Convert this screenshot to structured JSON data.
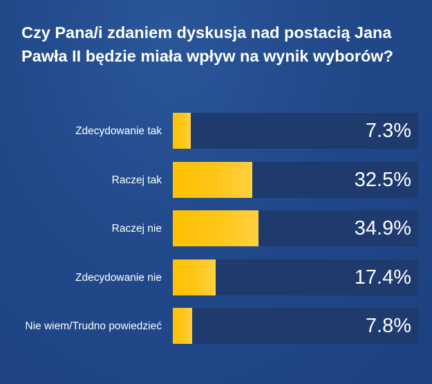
{
  "chart_data": {
    "type": "bar",
    "orientation": "horizontal",
    "title": "Czy Pana/i zdaniem dyskusja nad postacią Jana Pawła II będzie miała wpływ na wynik wyborów?",
    "categories": [
      "Zdecydowanie tak",
      "Raczej tak",
      "Raczej nie",
      "Zdecydowanie nie",
      "Nie wiem/Trudno powiedzieć"
    ],
    "values": [
      7.3,
      32.5,
      34.9,
      17.4,
      7.8
    ],
    "value_labels": [
      "7.3%",
      "32.5%",
      "34.9%",
      "17.4%",
      "7.8%"
    ],
    "xlim": [
      0,
      100
    ],
    "colors": {
      "bar": "#ffc100",
      "track": "#1f3a6d",
      "background": "#21498a"
    }
  }
}
